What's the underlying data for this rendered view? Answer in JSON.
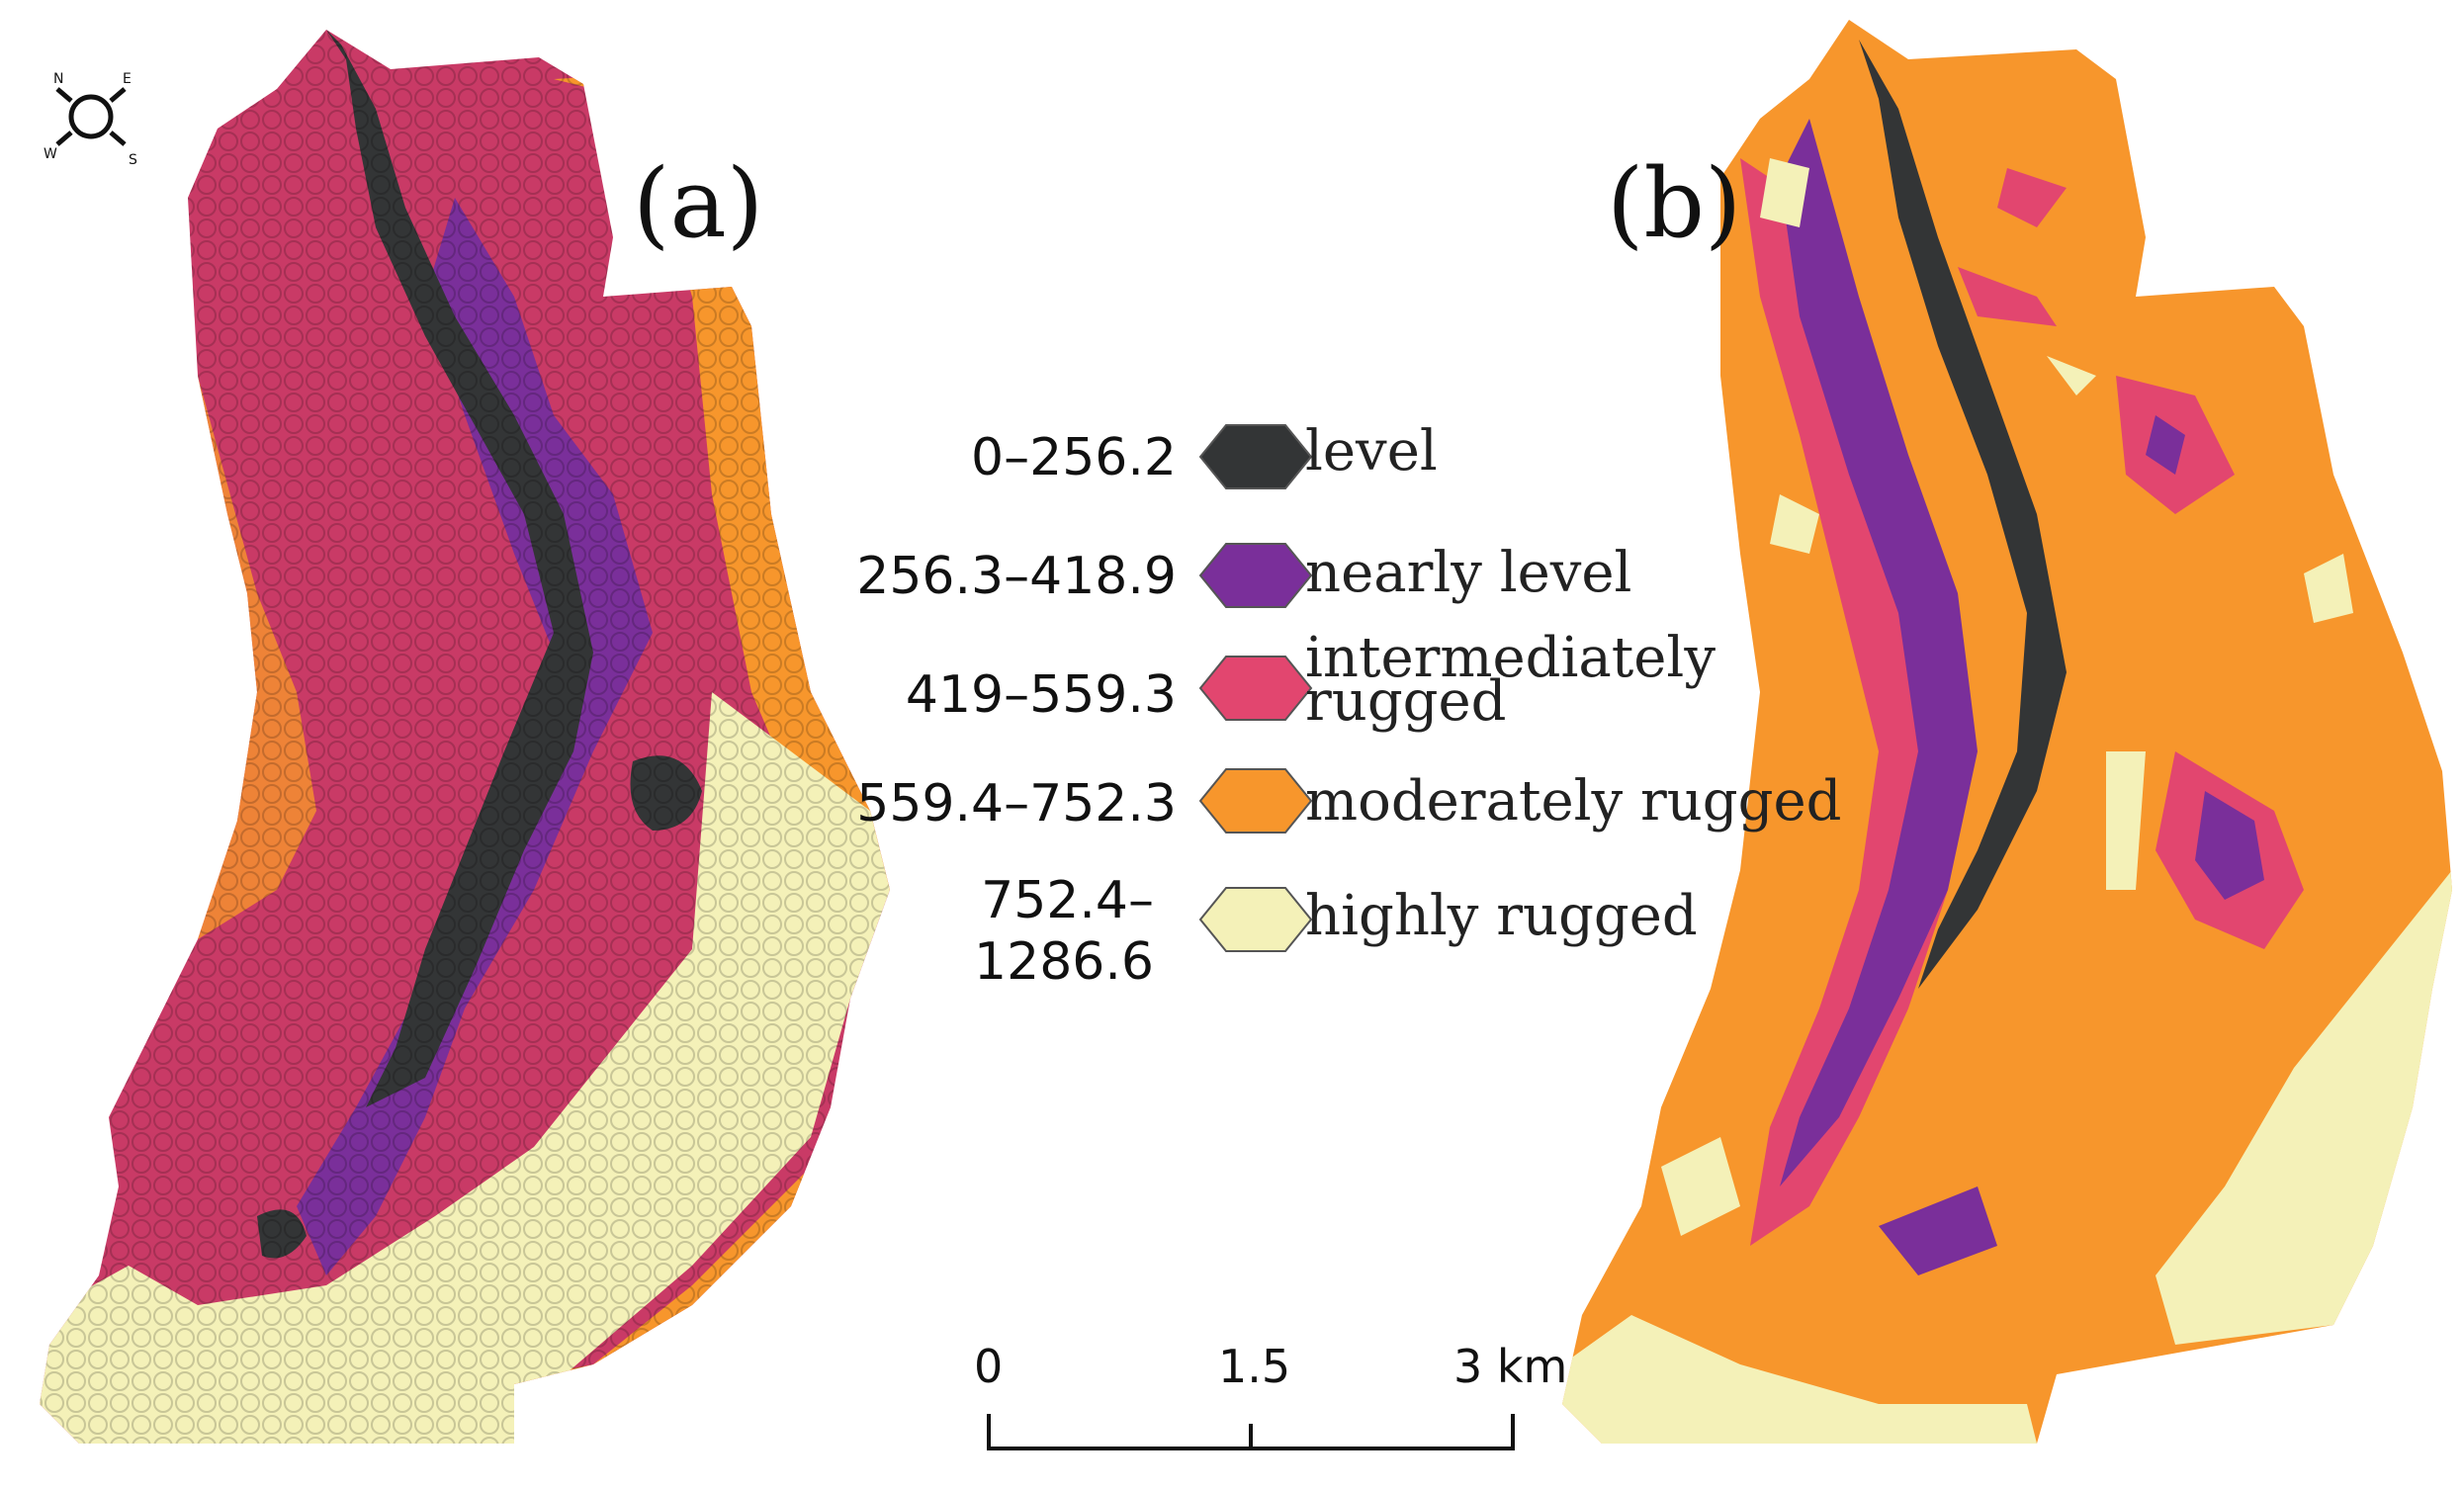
{
  "panels": {
    "a": "(a)",
    "b": "(b)"
  },
  "compass": {
    "n": "N",
    "e": "E",
    "s": "S",
    "w": "W"
  },
  "legend": [
    {
      "range": "0–256.2",
      "label": "level",
      "color": "#333536"
    },
    {
      "range": "256.3–418.9",
      "label": "nearly level",
      "color": "#7a2f9a"
    },
    {
      "range": "419–559.3",
      "label": "intermediately\nrugged",
      "color": "#e2466f"
    },
    {
      "range": "559.4–752.3",
      "label": "moderately rugged",
      "color": "#f7962c"
    },
    {
      "range": "752.4–\n1286.6",
      "label": "highly rugged",
      "color": "#f4f1b8"
    }
  ],
  "scale_bar": {
    "ticks": [
      "0",
      "1.5",
      "3 km"
    ]
  }
}
